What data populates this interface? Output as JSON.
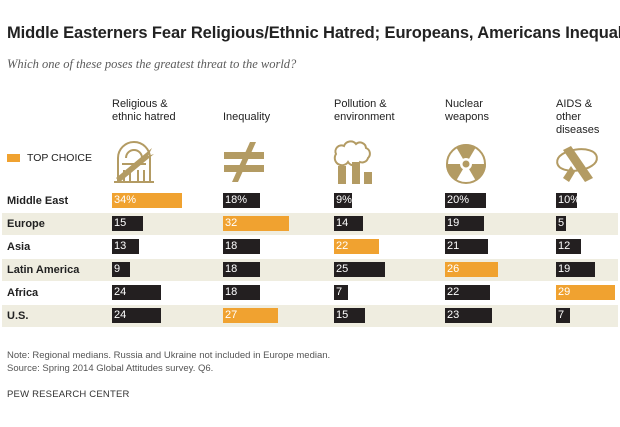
{
  "title": "Middle Easterners Fear Religious/Ethnic Hatred; Europeans, Americans Inequality",
  "subtitle": "Which one of these poses the greatest threat to the world?",
  "legend": {
    "label": "TOP CHOICE",
    "color": "#F0A230"
  },
  "colors": {
    "default_bar": "#231F20",
    "top_choice": "#F0A230",
    "stripe": "#EFEDE0"
  },
  "icons": [
    "religious-hatred-icon",
    "inequality-icon",
    "pollution-icon",
    "nuclear-icon",
    "aids-ribbon-icon"
  ],
  "chart_data": {
    "type": "bar",
    "title": "Middle Easterners Fear Religious/Ethnic Hatred; Europeans, Americans Inequality",
    "subtitle": "Which one of these poses the greatest threat to the world?",
    "columns": [
      {
        "label_line1": "Religious &",
        "label_line2": "ethnic hatred"
      },
      {
        "label_line1": "",
        "label_line2": "Inequality"
      },
      {
        "label_line1": "Pollution &",
        "label_line2": "environment"
      },
      {
        "label_line1": "Nuclear",
        "label_line2": "weapons"
      },
      {
        "label_line1": "AIDS & other",
        "label_line2": "diseases"
      }
    ],
    "rows": [
      {
        "region": "Middle East",
        "values": [
          34,
          18,
          9,
          20,
          10
        ],
        "labels": [
          "34%",
          "18%",
          "9%",
          "20%",
          "10%"
        ],
        "top": 0
      },
      {
        "region": "Europe",
        "values": [
          15,
          32,
          14,
          19,
          5
        ],
        "labels": [
          "15",
          "32",
          "14",
          "19",
          "5"
        ],
        "top": 1
      },
      {
        "region": "Asia",
        "values": [
          13,
          18,
          22,
          21,
          12
        ],
        "labels": [
          "13",
          "18",
          "22",
          "21",
          "12"
        ],
        "top": 2
      },
      {
        "region": "Latin America",
        "values": [
          9,
          18,
          25,
          26,
          19
        ],
        "labels": [
          "9",
          "18",
          "25",
          "26",
          "19"
        ],
        "top": 3
      },
      {
        "region": "Africa",
        "values": [
          24,
          18,
          7,
          22,
          29
        ],
        "labels": [
          "24",
          "18",
          "7",
          "22",
          "29"
        ],
        "top": 4
      },
      {
        "region": "U.S.",
        "values": [
          24,
          27,
          15,
          23,
          7
        ],
        "labels": [
          "24",
          "27",
          "15",
          "23",
          "7"
        ],
        "top": 1
      }
    ]
  },
  "notes": {
    "line1": "Note: Regional medians. Russia and Ukraine not included in Europe median.",
    "line2": "Source: Spring 2014 Global Attitudes survey. Q6.",
    "org": "PEW RESEARCH CENTER"
  }
}
